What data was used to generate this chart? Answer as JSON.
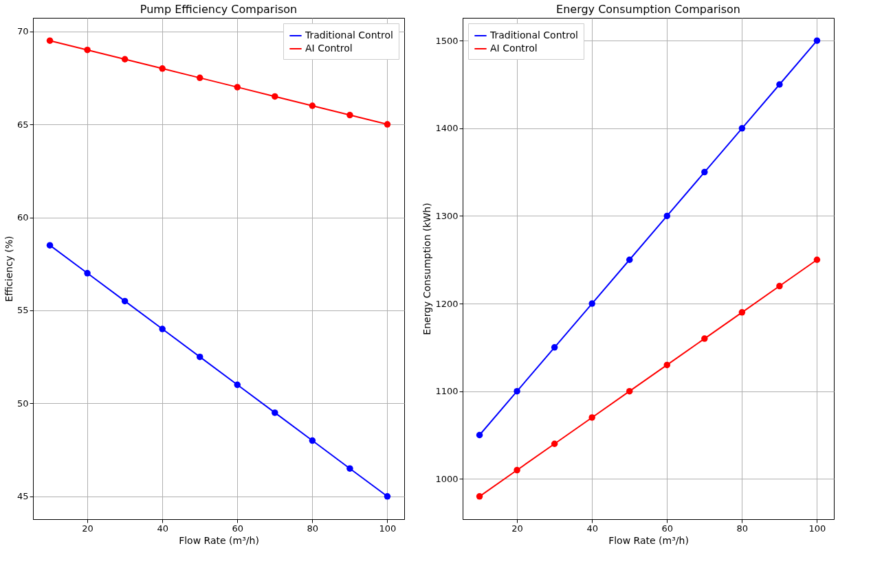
{
  "chart_data": [
    {
      "type": "line",
      "title": "Pump Efficiency Comparison",
      "xlabel": "Flow Rate (m³/h)",
      "ylabel": "Efficiency (%)",
      "x": [
        10,
        20,
        30,
        40,
        50,
        60,
        70,
        80,
        90,
        100
      ],
      "series": [
        {
          "name": "Traditional Control",
          "color": "#0000ff",
          "values": [
            58.5,
            57,
            55.5,
            54,
            52.5,
            51,
            49.5,
            48,
            46.5,
            45
          ]
        },
        {
          "name": "AI Control",
          "color": "#ff0000",
          "values": [
            69.5,
            69,
            68.5,
            68,
            67.5,
            67,
            66.5,
            66,
            65.5,
            65
          ]
        }
      ],
      "xlim": [
        5.5,
        104.5
      ],
      "xticks": [
        20,
        40,
        60,
        80,
        100
      ],
      "ylim": [
        43.775,
        70.725
      ],
      "yticks": [
        45,
        50,
        55,
        60,
        65,
        70
      ],
      "grid": true,
      "legend": "top right",
      "marker": "circle",
      "line_style": "solid"
    },
    {
      "type": "line",
      "title": "Energy Consumption Comparison",
      "xlabel": "Flow Rate (m³/h)",
      "ylabel": "Energy Consumption (kWh)",
      "x": [
        10,
        20,
        30,
        40,
        50,
        60,
        70,
        80,
        90,
        100
      ],
      "series": [
        {
          "name": "Traditional Control",
          "color": "#0000ff",
          "values": [
            1050,
            1100,
            1150,
            1200,
            1250,
            1300,
            1350,
            1400,
            1450,
            1500
          ]
        },
        {
          "name": "AI Control",
          "color": "#ff0000",
          "values": [
            980,
            1010,
            1040,
            1070,
            1100,
            1130,
            1160,
            1190,
            1220,
            1250
          ]
        }
      ],
      "xlim": [
        5.5,
        104.5
      ],
      "xticks": [
        20,
        40,
        60,
        80,
        100
      ],
      "ylim": [
        954,
        1526
      ],
      "yticks": [
        1000,
        1100,
        1200,
        1300,
        1400,
        1500
      ],
      "grid": true,
      "legend": "top left",
      "marker": "circle",
      "line_style": "solid"
    }
  ]
}
